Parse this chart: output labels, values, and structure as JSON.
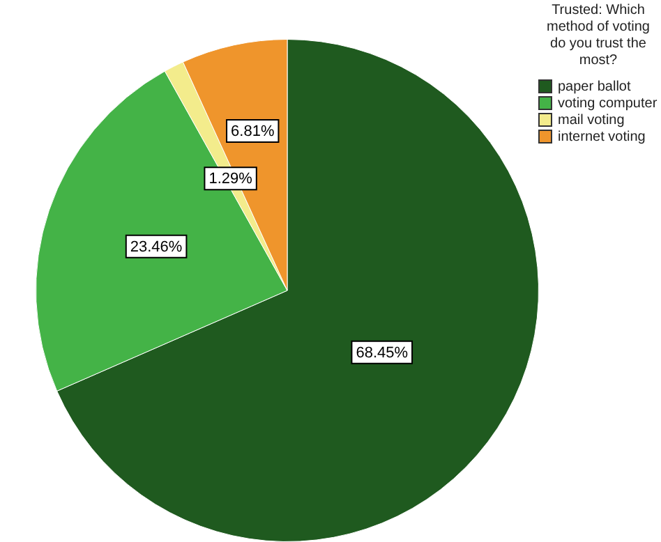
{
  "chart_data": {
    "type": "pie",
    "legend_title": "Trusted: Which method of voting do you trust the most?",
    "categories": [
      "paper ballot",
      "voting computer",
      "mail voting",
      "internet voting"
    ],
    "values": [
      68.45,
      23.46,
      1.29,
      6.81
    ],
    "colors": [
      "#1f5a1f",
      "#44b347",
      "#f3ec8c",
      "#ef952c"
    ],
    "value_labels": [
      "68.45%",
      "23.46%",
      "1.29%",
      "6.81%"
    ],
    "legend": "top right"
  }
}
